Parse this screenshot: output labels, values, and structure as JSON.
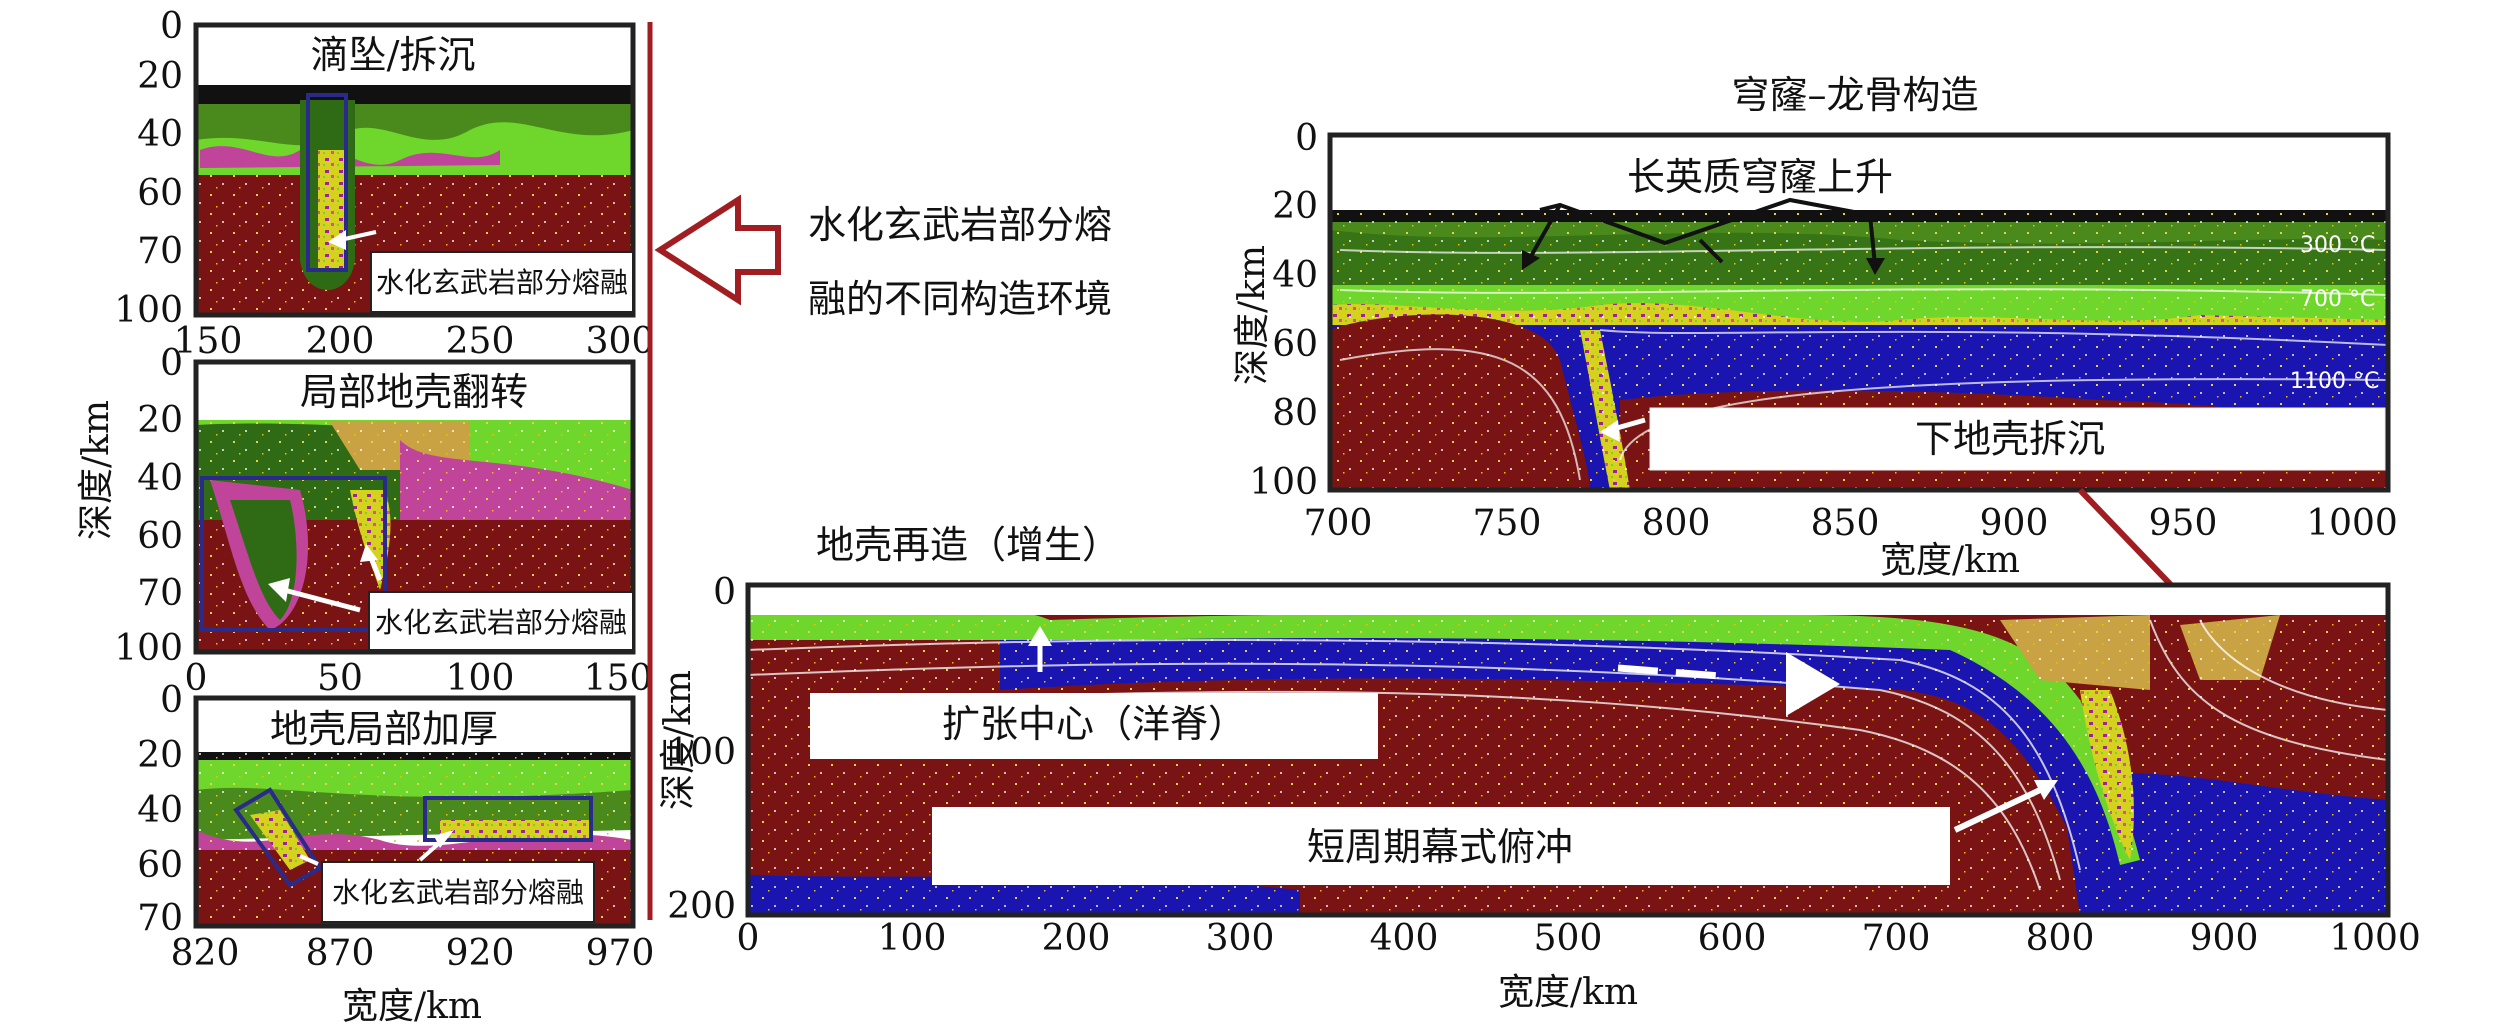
{
  "colors": {
    "mantle": "#7a1414",
    "asthenosphere": "#1a14b0",
    "basalt": "#6fd62b",
    "gabbro": "#2f6b14",
    "melt": "#c0449a",
    "sediment": "#c9a243",
    "border": "#222222",
    "arrow_red": "#a01e22"
  },
  "common": {
    "depth_label": "深度/km",
    "width_label": "宽度/km"
  },
  "panel_drip": {
    "title": "滴坠/拆沉",
    "melt_label": "水化玄武岩部分熔融",
    "y_ticks": [
      "0",
      "20",
      "40",
      "60",
      "70",
      "100"
    ],
    "x_ticks": [
      "150",
      "200",
      "250",
      "300"
    ]
  },
  "panel_overturn": {
    "title": "局部地壳翻转",
    "melt_label": "水化玄武岩部分熔融",
    "y_ticks": [
      "0",
      "20",
      "40",
      "60",
      "70",
      "100"
    ],
    "x_ticks": [
      "0",
      "50",
      "100",
      "150"
    ]
  },
  "panel_thicken": {
    "title": "地壳局部加厚",
    "melt_label": "水化玄武岩部分熔融",
    "y_ticks": [
      "0",
      "20",
      "40",
      "60",
      "70"
    ],
    "x_ticks": [
      "820",
      "870",
      "920",
      "970"
    ]
  },
  "side_note": {
    "line1": "水化玄武岩部分熔",
    "line2": "融的不同构造环境"
  },
  "panel_dome": {
    "title": "穹窿–龙骨构造",
    "uplift_label": "长英质穹窿上升",
    "delam_label": "下地壳拆沉",
    "temps": [
      "300 °C",
      "700 °C",
      "1100 °C"
    ],
    "y_ticks": [
      "0",
      "20",
      "40",
      "60",
      "80",
      "100"
    ],
    "x_ticks": [
      "700",
      "750",
      "800",
      "850",
      "900",
      "950",
      "1000"
    ]
  },
  "panel_main": {
    "title": "地壳再造（增生）",
    "ridge_label": "扩张中心（洋脊）",
    "subduction_label": "短周期幕式俯冲",
    "y_ticks": [
      "0",
      "100",
      "200"
    ],
    "x_ticks": [
      "0",
      "100",
      "200",
      "300",
      "400",
      "500",
      "600",
      "700",
      "800",
      "900",
      "1000"
    ]
  }
}
